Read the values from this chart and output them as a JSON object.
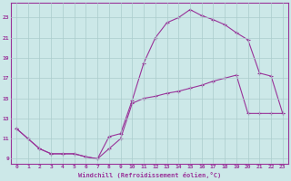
{
  "xlabel": "Windchill (Refroidissement éolien,°C)",
  "bg_color": "#cce8e8",
  "line_color": "#993399",
  "grid_color": "#aacccc",
  "xlim": [
    -0.5,
    23.5
  ],
  "ylim": [
    8.5,
    24.5
  ],
  "xticks": [
    0,
    1,
    2,
    3,
    4,
    5,
    6,
    7,
    8,
    9,
    10,
    11,
    12,
    13,
    14,
    15,
    16,
    17,
    18,
    19,
    20,
    21,
    22,
    23
  ],
  "yticks": [
    9,
    11,
    13,
    15,
    17,
    19,
    21,
    23
  ],
  "line1_x": [
    0,
    1,
    2,
    3,
    4,
    5,
    6,
    7,
    8,
    9,
    10,
    11,
    12,
    13,
    14,
    15,
    16,
    17,
    18,
    19,
    20,
    21,
    22,
    23
  ],
  "line1_y": [
    12.0,
    11.0,
    10.0,
    9.5,
    9.5,
    9.5,
    9.2,
    9.0,
    11.2,
    11.5,
    14.8,
    18.5,
    21.0,
    22.5,
    23.0,
    23.8,
    23.2,
    22.8,
    22.3,
    21.5,
    20.8,
    17.5,
    17.2,
    13.5
  ],
  "line2_x": [
    0,
    1,
    2,
    3,
    4,
    5,
    6,
    7,
    8,
    9,
    10,
    11,
    12,
    13,
    14,
    15,
    16,
    17,
    18,
    19,
    20,
    21,
    22,
    23
  ],
  "line2_y": [
    12.0,
    11.0,
    10.0,
    9.5,
    9.5,
    9.5,
    9.2,
    9.0,
    10.0,
    11.0,
    14.5,
    15.0,
    15.2,
    15.5,
    15.7,
    16.0,
    16.3,
    16.7,
    17.0,
    17.3,
    13.5,
    13.5,
    13.5,
    13.5
  ]
}
